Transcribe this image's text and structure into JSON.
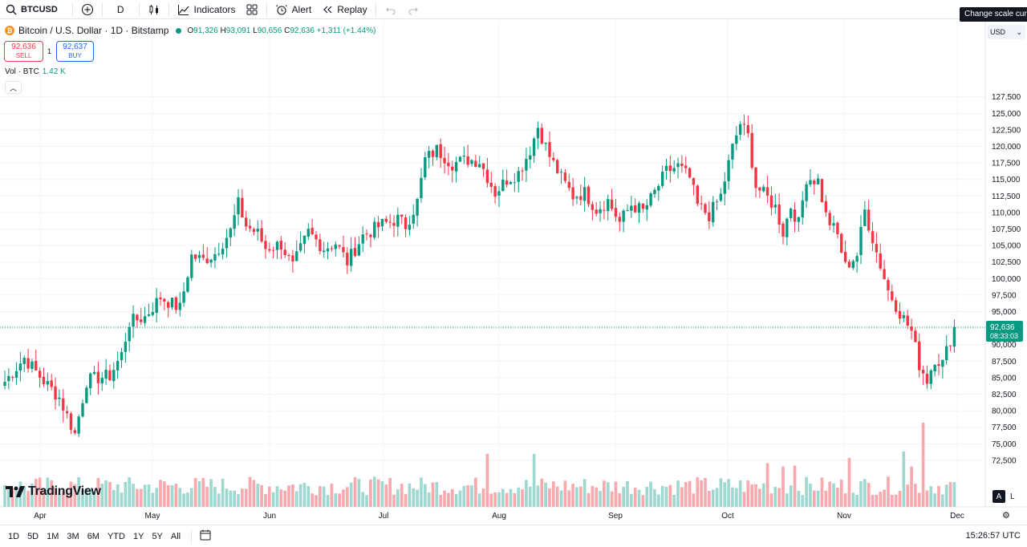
{
  "toolbar": {
    "symbol": "BTCUSD",
    "interval": "D",
    "indicators": "Indicators",
    "alert": "Alert",
    "replay": "Replay"
  },
  "tooltip": "Change scale currency",
  "currency": "USD",
  "legend": {
    "title": "Bitcoin / U.S. Dollar · 1D · Bitstamp",
    "o_label": "O",
    "o": "91,326",
    "h_label": "H",
    "h": "93,091",
    "l_label": "L",
    "l": "90,656",
    "c_label": "C",
    "c": "92,636",
    "change": "+1,311 (+1.44%)"
  },
  "trade": {
    "sell_price": "92,636",
    "sell_label": "SELL",
    "spread": "1",
    "buy_price": "92,637",
    "buy_label": "BUY"
  },
  "volume_legend": {
    "label": "Vol · BTC",
    "value": "1.42 K"
  },
  "branding": "TradingView",
  "bottom": {
    "ranges": [
      "1D",
      "5D",
      "1M",
      "3M",
      "6M",
      "YTD",
      "1Y",
      "5Y",
      "All"
    ],
    "clock": "15:26:57 UTC",
    "auto": "A",
    "log": "L"
  },
  "colors": {
    "up": "#089981",
    "down": "#f23645",
    "up_vol": "#9ed8d0",
    "down_vol": "#f7a9ae",
    "grid": "#f0f3fa"
  },
  "chart_data": {
    "type": "candlestick",
    "title": "Bitcoin / U.S. Dollar · 1D · Bitstamp",
    "ylim": [
      72000,
      128000
    ],
    "y_ticks": [
      72500,
      75000,
      77500,
      80000,
      82500,
      85000,
      87500,
      90000,
      92500,
      95000,
      97500,
      100000,
      102500,
      105000,
      107500,
      110000,
      112500,
      115000,
      117500,
      120000,
      122500,
      125000,
      127500
    ],
    "x_labels": [
      "Apr",
      "May",
      "Jun",
      "Jul",
      "Aug",
      "Sep",
      "Oct",
      "Nov",
      "Dec"
    ],
    "last_price": "92,636",
    "countdown": "08:33:03",
    "close_path": [
      [
        0,
        84400
      ],
      [
        5,
        88000
      ],
      [
        10,
        84500
      ],
      [
        14,
        82000
      ],
      [
        18,
        76500
      ],
      [
        21,
        84500
      ],
      [
        24,
        85000
      ],
      [
        27,
        85300
      ],
      [
        30,
        88500
      ],
      [
        32,
        93400
      ],
      [
        36,
        94200
      ],
      [
        40,
        97200
      ],
      [
        45,
        95500
      ],
      [
        48,
        103400
      ],
      [
        51,
        102800
      ],
      [
        54,
        103800
      ],
      [
        58,
        107200
      ],
      [
        60,
        111300
      ],
      [
        62,
        108000
      ],
      [
        65,
        106800
      ],
      [
        67,
        104600
      ],
      [
        71,
        105200
      ],
      [
        74,
        101800
      ],
      [
        78,
        107000
      ],
      [
        82,
        104600
      ],
      [
        85,
        105400
      ],
      [
        88,
        102500
      ],
      [
        92,
        106500
      ],
      [
        97,
        108200
      ],
      [
        101,
        109000
      ],
      [
        103,
        108000
      ],
      [
        106,
        111600
      ],
      [
        108,
        118000
      ],
      [
        111,
        119500
      ],
      [
        115,
        117400
      ],
      [
        119,
        118000
      ],
      [
        122,
        117800
      ],
      [
        126,
        113000
      ],
      [
        129,
        115000
      ],
      [
        132,
        116000
      ],
      [
        135,
        119500
      ],
      [
        137,
        123000
      ],
      [
        140,
        118500
      ],
      [
        143,
        115200
      ],
      [
        146,
        112500
      ],
      [
        149,
        113000
      ],
      [
        152,
        110500
      ],
      [
        155,
        111800
      ],
      [
        158,
        108500
      ],
      [
        161,
        111200
      ],
      [
        164,
        110200
      ],
      [
        166,
        112000
      ],
      [
        170,
        116200
      ],
      [
        173,
        117000
      ],
      [
        176,
        115200
      ],
      [
        178,
        111000
      ],
      [
        181,
        109600
      ],
      [
        184,
        112500
      ],
      [
        187,
        119800
      ],
      [
        189,
        123500
      ],
      [
        191,
        121500
      ],
      [
        193,
        114000
      ],
      [
        196,
        112200
      ],
      [
        198,
        110800
      ],
      [
        200,
        107000
      ],
      [
        202,
        111000
      ],
      [
        204,
        108300
      ],
      [
        206,
        115300
      ],
      [
        209,
        114800
      ],
      [
        211,
        109500
      ],
      [
        214,
        106500
      ],
      [
        216,
        101800
      ],
      [
        219,
        103600
      ],
      [
        221,
        110300
      ],
      [
        224,
        104000
      ],
      [
        227,
        98200
      ],
      [
        230,
        94900
      ],
      [
        233,
        92000
      ],
      [
        235,
        87000
      ],
      [
        237,
        84700
      ],
      [
        239,
        88000
      ],
      [
        241,
        87200
      ],
      [
        243,
        90800
      ],
      [
        244,
        92636
      ]
    ],
    "volume_spikes": [
      {
        "index": 124,
        "volume": 6.3
      },
      {
        "index": 136,
        "volume": 6.3
      },
      {
        "index": 196,
        "volume": 5.2
      },
      {
        "index": 200,
        "volume": 4.8
      },
      {
        "index": 203,
        "volume": 4.9
      },
      {
        "index": 217,
        "volume": 5.8
      },
      {
        "index": 231,
        "volume": 6.6
      },
      {
        "index": 233,
        "volume": 4.8
      },
      {
        "index": 236,
        "volume": 10.0
      }
    ],
    "candle_count": 245
  }
}
